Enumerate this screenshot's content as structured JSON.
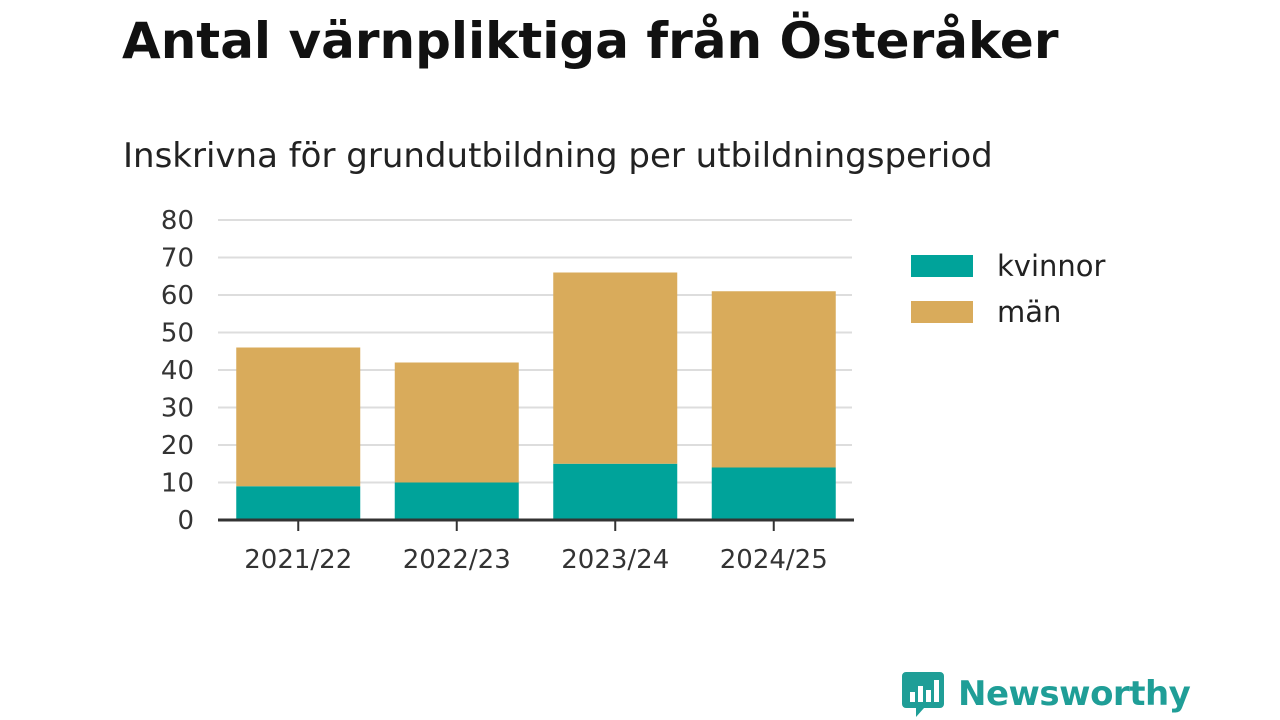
{
  "title": "Antal värnpliktiga från Österåker",
  "subtitle": "Inskrivna för grundutbildning per utbildningsperiod",
  "logo": {
    "text": "Newsworthy",
    "icon": "bar-chart-speech-bubble-icon"
  },
  "colors": {
    "kvinnor": "#00a39a",
    "man": "#d9ab5b",
    "grid": "#dddddd",
    "axis": "#333333"
  },
  "chart_data": {
    "type": "bar",
    "stacked": true,
    "categories": [
      "2021/22",
      "2022/23",
      "2023/24",
      "2024/25"
    ],
    "series": [
      {
        "name": "kvinnor",
        "values": [
          9,
          10,
          15,
          14
        ]
      },
      {
        "name": "män",
        "values": [
          37,
          32,
          51,
          47
        ]
      }
    ],
    "ylim": [
      0,
      80
    ],
    "yticks": [
      "0",
      "10",
      "20",
      "30",
      "40",
      "50",
      "60",
      "70",
      "80"
    ],
    "grid": true,
    "legend_position": "right"
  }
}
